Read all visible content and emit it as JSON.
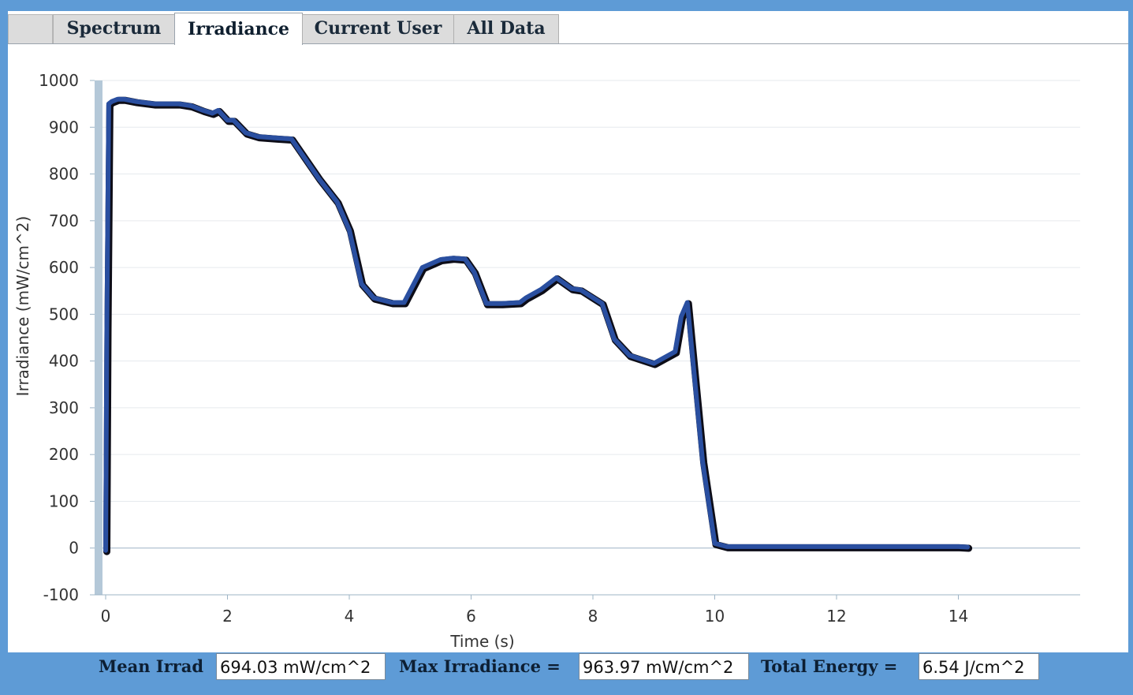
{
  "tabs": [
    {
      "label": "Spectrum",
      "active": false
    },
    {
      "label": "Irradiance",
      "active": true
    },
    {
      "label": "Current User",
      "active": false
    },
    {
      "label": "All Data",
      "active": false
    }
  ],
  "stats": {
    "mean_label": "Mean Irrad",
    "mean_value": "694.03 mW/cm^2",
    "max_label": "Max Irradiance =",
    "max_value": "963.97 mW/cm^2",
    "energy_label": "Total Energy =",
    "energy_value": "6.54 J/cm^2"
  },
  "colors": {
    "line": "#2a4fa0",
    "frame": "#5e9bd6"
  },
  "chart_data": {
    "type": "line",
    "title": "",
    "xlabel": "Time (s)",
    "ylabel": "Irradiance (mW/cm^2)",
    "xlim": [
      0,
      16
    ],
    "ylim": [
      -100,
      1000
    ],
    "xticks": [
      0,
      2,
      4,
      6,
      8,
      10,
      12,
      14
    ],
    "yticks": [
      -100,
      0,
      100,
      200,
      300,
      400,
      500,
      600,
      700,
      800,
      900,
      1000
    ],
    "grid": "horizontal",
    "series": [
      {
        "x": [
          0,
          0.02,
          0.05,
          0.1,
          0.2,
          0.3,
          0.5,
          0.8,
          1.0,
          1.2,
          1.4,
          1.6,
          1.75,
          1.85,
          2.0,
          2.1,
          2.3,
          2.5,
          2.8,
          3.05,
          3.5,
          3.8,
          4.0,
          4.2,
          4.4,
          4.7,
          4.9,
          5.2,
          5.5,
          5.7,
          5.9,
          6.05,
          6.25,
          6.5,
          6.8,
          6.9,
          7.15,
          7.4,
          7.65,
          7.8,
          8.15,
          8.35,
          8.6,
          9.0,
          9.35,
          9.45,
          9.55,
          9.8,
          10.0,
          10.2,
          11.0,
          12.0,
          13.0,
          14.0,
          14.15
        ],
        "y": [
          -5,
          470,
          950,
          955,
          960,
          960,
          955,
          950,
          950,
          950,
          946,
          936,
          930,
          936,
          915,
          915,
          888,
          880,
          877,
          875,
          790,
          740,
          680,
          565,
          535,
          525,
          525,
          600,
          617,
          620,
          618,
          590,
          523,
          523,
          525,
          535,
          553,
          578,
          555,
          552,
          523,
          447,
          412,
          395,
          420,
          495,
          525,
          185,
          10,
          3,
          3,
          3,
          3,
          3,
          2
        ]
      }
    ]
  }
}
